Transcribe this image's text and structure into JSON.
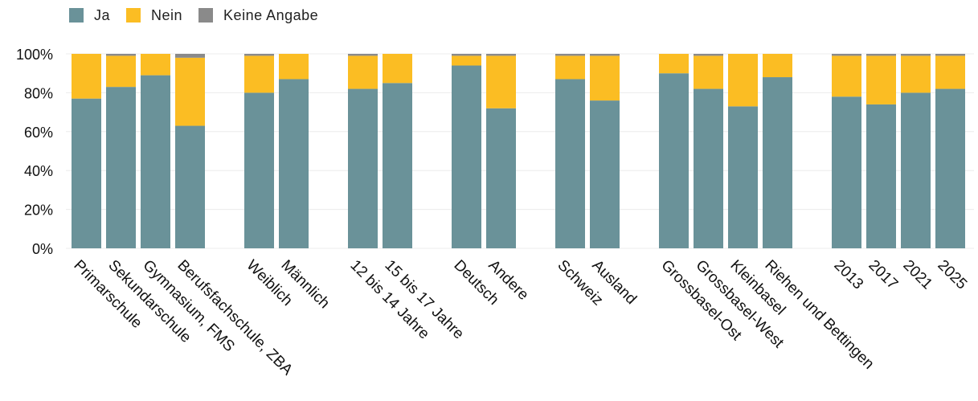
{
  "legend": {
    "items": [
      {
        "label": "Ja",
        "color": "#6a9299"
      },
      {
        "label": "Nein",
        "color": "#fbbd23"
      },
      {
        "label": "Keine Angabe",
        "color": "#8a8a8a"
      }
    ]
  },
  "chart_data": {
    "type": "bar",
    "stacked": true,
    "ylim": [
      0,
      100
    ],
    "yticks": [
      "0%",
      "20%",
      "40%",
      "60%",
      "80%",
      "100%"
    ],
    "grid": true,
    "legend_position": "top-left",
    "groups": [
      {
        "categories": [
          "Primarschule",
          "Sekundarschule",
          "Gymnasium, FMS",
          "Berufsfachschule, ZBA"
        ]
      },
      {
        "categories": [
          "Weiblich",
          "Männlich"
        ]
      },
      {
        "categories": [
          "12 bis 14 Jahre",
          "15 bis 17 Jahre"
        ]
      },
      {
        "categories": [
          "Deutsch",
          "Andere"
        ]
      },
      {
        "categories": [
          "Schweiz",
          "Ausland"
        ]
      },
      {
        "categories": [
          "Grossbasel-Ost",
          "Grossbasel-West",
          "Kleinbasel",
          "Riehen und Bettingen"
        ]
      },
      {
        "categories": [
          "2013",
          "2017",
          "2021",
          "2025"
        ]
      }
    ],
    "categories": [
      "Primarschule",
      "Sekundarschule",
      "Gymnasium, FMS",
      "Berufsfachschule, ZBA",
      "Weiblich",
      "Männlich",
      "12 bis 14 Jahre",
      "15 bis 17 Jahre",
      "Deutsch",
      "Andere",
      "Schweiz",
      "Ausland",
      "Grossbasel-Ost",
      "Grossbasel-West",
      "Kleinbasel",
      "Riehen und Bettingen",
      "2013",
      "2017",
      "2021",
      "2025"
    ],
    "series": [
      {
        "name": "Ja",
        "color": "#6a9299",
        "values": [
          77,
          83,
          89,
          63,
          80,
          87,
          82,
          85,
          94,
          72,
          87,
          76,
          90,
          82,
          73,
          88,
          78,
          74,
          80,
          82
        ]
      },
      {
        "name": "Nein",
        "color": "#fbbd23",
        "values": [
          23,
          16,
          11,
          35,
          19,
          13,
          17,
          15,
          5,
          27,
          12,
          23,
          10,
          17,
          27,
          12,
          21,
          25,
          19,
          17
        ]
      },
      {
        "name": "Keine Angabe",
        "color": "#8a8a8a",
        "values": [
          0,
          1,
          0,
          2,
          1,
          0,
          1,
          0,
          1,
          1,
          1,
          1,
          0,
          1,
          0,
          0,
          1,
          1,
          1,
          1
        ]
      }
    ]
  }
}
